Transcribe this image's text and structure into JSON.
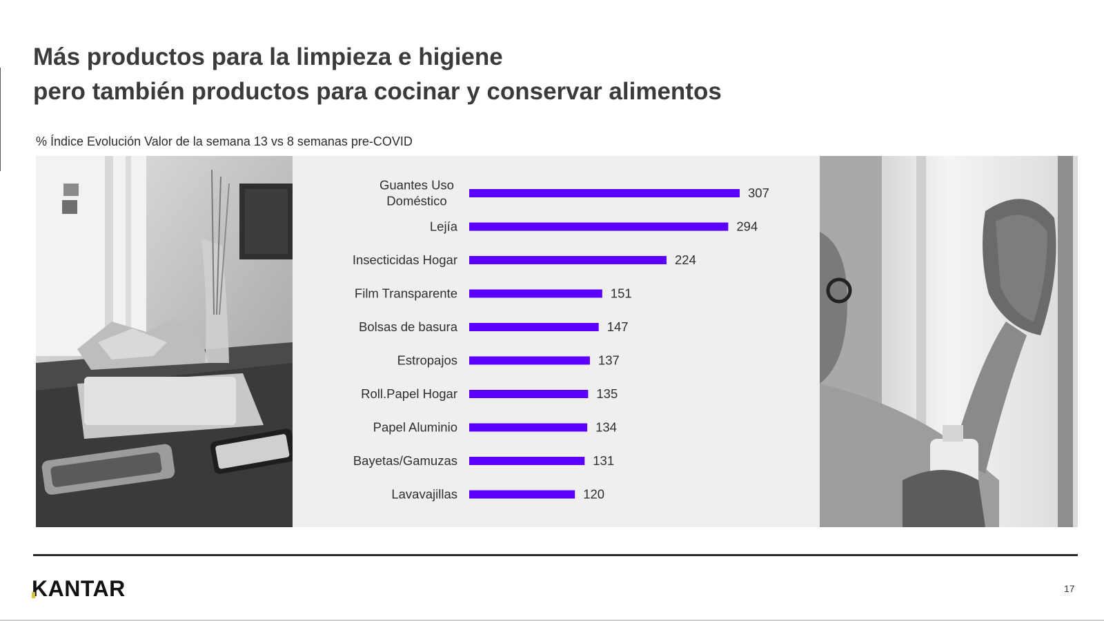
{
  "slide": {
    "title_line1": "Más productos para la limpieza e higiene",
    "title_line2": "pero también productos para cocinar y conservar alimentos",
    "subtitle": "% Índice Evolución Valor de la semana 13 vs 8 semanas pre-COVID",
    "logo": "KANTAR",
    "page_number": "17"
  },
  "colors": {
    "bar": "#5b00ff",
    "panel": "#efefed",
    "logo_accent": "#d6c13a"
  },
  "chart_data": {
    "type": "bar",
    "orientation": "horizontal",
    "categories": [
      [
        "Guantes Uso",
        "Doméstico"
      ],
      [
        "Lejía"
      ],
      [
        "Insecticidas Hogar"
      ],
      [
        "Film Transparente"
      ],
      [
        "Bolsas de basura"
      ],
      [
        "Estropajos"
      ],
      [
        "Roll.Papel Hogar"
      ],
      [
        "Papel Aluminio"
      ],
      [
        "Bayetas/Gamuzas"
      ],
      [
        "Lavavajillas"
      ]
    ],
    "values": [
      307,
      294,
      224,
      151,
      147,
      137,
      135,
      134,
      131,
      120
    ],
    "xlim": [
      0,
      307
    ],
    "grid": false,
    "legend": "none"
  }
}
